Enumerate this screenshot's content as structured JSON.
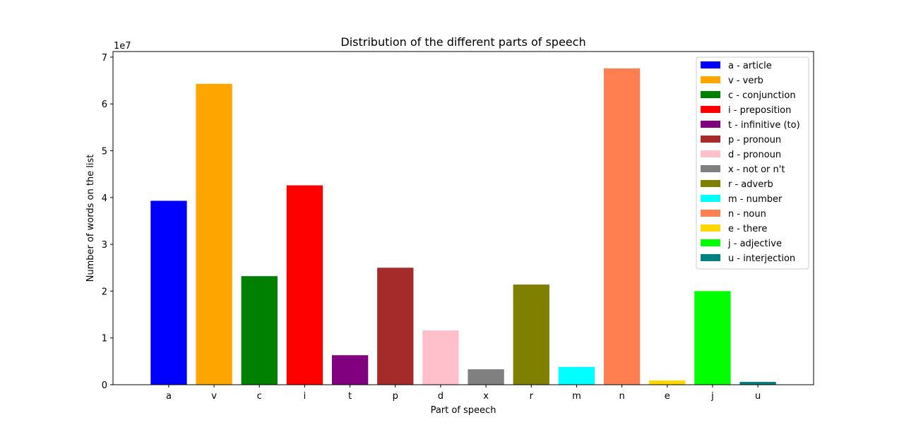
{
  "chart_data": {
    "type": "bar",
    "title": "Distribution of the different parts of speech",
    "xlabel": "Part of speech",
    "ylabel": "Number of words on the list",
    "offset_label": "1e7",
    "ylim": [
      0,
      7.12
    ],
    "yticks": [
      0,
      1,
      2,
      3,
      4,
      5,
      6,
      7
    ],
    "grid": false,
    "legend_position": "top-right",
    "categories": [
      "a",
      "v",
      "c",
      "i",
      "t",
      "p",
      "d",
      "x",
      "r",
      "m",
      "n",
      "e",
      "j",
      "u"
    ],
    "values": [
      3.93,
      6.43,
      2.32,
      4.26,
      0.63,
      2.5,
      1.16,
      0.33,
      2.14,
      0.38,
      6.76,
      0.09,
      2.0,
      0.06
    ],
    "colors": [
      "#0000ff",
      "#ffa500",
      "#008000",
      "#ff0000",
      "#800080",
      "#a52a2a",
      "#ffc0cb",
      "#808080",
      "#808000",
      "#00ffff",
      "#ff7f50",
      "#ffd700",
      "#00ff00",
      "#008080"
    ],
    "legend": [
      "a - article",
      "v - verb",
      "c - conjunction",
      "i - preposition",
      "t - infinitive (to)",
      "p - pronoun",
      "d - pronoun",
      "x - not or n't",
      "r - adverb",
      "m - number",
      "n - noun",
      "e - there",
      "j - adjective",
      "u - interjection"
    ]
  }
}
